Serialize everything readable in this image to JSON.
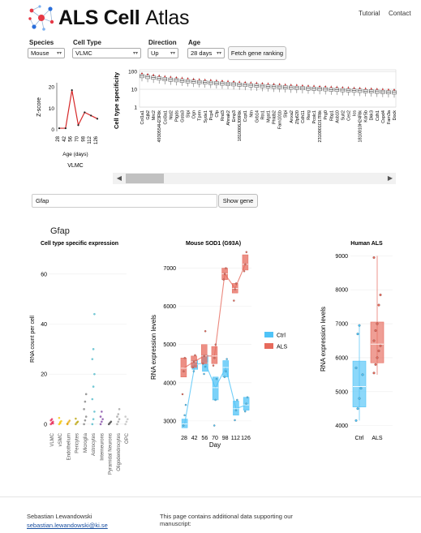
{
  "header": {
    "logo_text_bold": "ALS Cell",
    "logo_text_light": "Atlas",
    "nav": [
      "Tutorial",
      "Contact"
    ]
  },
  "controls": {
    "species": {
      "label": "Species",
      "value": "Mouse"
    },
    "cell_type": {
      "label": "Cell Type",
      "value": "VLMC"
    },
    "direction": {
      "label": "Direction",
      "value": "Up"
    },
    "age": {
      "label": "Age",
      "value": "28 days"
    },
    "fetch_button": "Fetch gene ranking"
  },
  "zscore_chart": {
    "ylabel": "Z-score",
    "xlabel": "Age (days)",
    "caption": "VLMC",
    "yticks": [
      "20",
      "10",
      "0"
    ],
    "xticks": [
      "28",
      "42",
      "56",
      "70",
      "98",
      "112",
      "126"
    ],
    "values": [
      0.5,
      0.5,
      18.5,
      2.0,
      8.0,
      6.5,
      5.0
    ],
    "ylim": [
      -1,
      22
    ]
  },
  "ranking_chart": {
    "ylabel": "Cell type specificity",
    "yticks": [
      "100",
      "10",
      "1"
    ],
    "genes": [
      "Col1a1",
      "Gjb2",
      "Mrc2",
      "4930554H23Rik",
      "Col3a1",
      "Ntd2",
      "Ptgds",
      "Gsta3",
      "Slpi",
      "Ogn",
      "Tprm",
      "Syde1",
      "Pcp4",
      "Cfp",
      "Rnd3",
      "Ahnak2",
      "Emp3",
      "1810006J09Rik",
      "Ccpt1",
      "Ntn",
      "Grb14",
      "Rtn1",
      "Mgst1",
      "Phldb2",
      "Fam101b",
      "Slpi",
      "Anxa2",
      "Zfp620",
      "Cdh11",
      "Rerg",
      "Pcolc1",
      "2310001D17Rik",
      "Prg0",
      "Rbp1",
      "Asb10",
      "Sult2",
      "Ces2",
      "Ics",
      "1810010H24Rik",
      "Kdr5b",
      "Dkk3",
      "Cdh1",
      "Cspd4",
      "Fam3a",
      "Dock"
    ],
    "medians_log10": [
      1.75,
      1.7,
      1.66,
      1.62,
      1.58,
      1.55,
      1.52,
      1.49,
      1.46,
      1.43,
      1.41,
      1.39,
      1.37,
      1.35,
      1.33,
      1.31,
      1.29,
      1.27,
      1.25,
      1.23,
      1.21,
      1.19,
      1.17,
      1.15,
      1.14,
      1.12,
      1.1,
      1.09,
      1.07,
      1.05,
      1.04,
      1.02,
      1.01,
      0.99,
      0.98,
      0.96,
      0.95,
      0.93,
      0.92,
      0.9,
      0.89,
      0.87,
      0.86,
      0.84,
      0.83
    ]
  },
  "gene_search": {
    "value": "Gfap",
    "button": "Show gene"
  },
  "gene_title": "Gfap",
  "chart_data": [
    {
      "type": "scatter",
      "title": "Cell type specific expression",
      "ylabel": "RNA count per cell",
      "categories": [
        "VLMC",
        "vSMC",
        "Endothelium",
        "Pericytes",
        "Microglia",
        "Astrocytes",
        "Interneurons",
        "Pyramidal Neurons",
        "Oligodendrocytes",
        "OPC"
      ],
      "yticks": [
        0,
        20,
        40,
        60
      ],
      "ylim": [
        -2,
        70
      ],
      "colors": [
        "#e6194b",
        "#f3c300",
        "#e4a300",
        "#b8a000",
        "#7a7a7a",
        "#46b5c7",
        "#7b3fa0",
        "#333333",
        "#9e9e9e",
        "#bbbbbb"
      ],
      "values": [
        [
          0,
          0.5,
          1,
          1.5,
          2,
          0.3
        ],
        [
          0,
          0.4,
          1.2,
          2.5,
          0.8
        ],
        [
          0,
          0.8,
          1.4,
          0.2
        ],
        [
          0,
          0.6,
          1,
          2.2
        ],
        [
          0,
          1.5,
          3,
          6,
          9,
          12
        ],
        [
          0,
          2,
          5,
          10,
          15,
          20,
          26,
          30,
          44
        ],
        [
          0,
          1,
          2,
          3,
          5
        ],
        [
          0,
          0.5,
          1
        ],
        [
          0,
          1,
          2,
          3,
          4,
          6
        ],
        [
          0,
          1,
          2,
          3
        ]
      ]
    },
    {
      "type": "box",
      "title": "Mouse SOD1 (G93A)",
      "xlabel": "Day",
      "ylabel": "RNA expression levels",
      "categories": [
        "28",
        "42",
        "56",
        "70",
        "98",
        "112",
        "126"
      ],
      "yticks": [
        3000,
        4000,
        5000,
        6000,
        7000
      ],
      "ylim": [
        2700,
        7500
      ],
      "series": [
        {
          "name": "Ctrl",
          "color": "#4fc3f7",
          "medians": [
            2920,
            4480,
            4520,
            3870,
            4400,
            3320,
            3420
          ],
          "q1": [
            2820,
            4350,
            4300,
            3550,
            4150,
            3150,
            3280
          ],
          "q3": [
            3050,
            4580,
            4720,
            4150,
            4580,
            3520,
            3620
          ],
          "points": [
            [
              2880,
              3150,
              3420
            ],
            [
              4300,
              4450,
              4580
            ],
            [
              4230,
              4420,
              4700
            ],
            [
              2880,
              3550,
              4100
            ],
            [
              4150,
              4300,
              4620
            ],
            [
              3020,
              3280,
              3550
            ],
            [
              3250,
              3450,
              3620
            ]
          ]
        },
        {
          "name": "ALS",
          "color": "#e66a5c",
          "medians": [
            4380,
            4550,
            4700,
            4700,
            6850,
            6470,
            7100
          ],
          "q1": [
            4150,
            4400,
            4500,
            4500,
            6700,
            6350,
            6950
          ],
          "q3": [
            4650,
            4700,
            5000,
            4950,
            7000,
            6600,
            7350
          ],
          "points": [
            [
              3700,
              4300,
              4650
            ],
            [
              4400,
              4550,
              4720
            ],
            [
              4500,
              4700,
              5350
            ],
            [
              4450,
              4650,
              5000
            ],
            [
              6700,
              6850,
              7000
            ],
            [
              6150,
              6450,
              6600
            ],
            [
              6920,
              7100,
              7420
            ]
          ]
        }
      ],
      "legend": [
        {
          "label": "Ctrl",
          "color": "#4fc3f7"
        },
        {
          "label": "ALS",
          "color": "#e66a5c"
        }
      ]
    },
    {
      "type": "box",
      "title": "Human ALS",
      "ylabel": "RNA expression levels",
      "categories": [
        "Ctrl",
        "ALS"
      ],
      "yticks": [
        4000,
        5000,
        6000,
        7000,
        8000,
        9000
      ],
      "ylim": [
        3800,
        9200
      ],
      "series": [
        {
          "name": "Ctrl",
          "color": "#4fc3f7",
          "median": 5150,
          "q1": 4550,
          "q3": 5900,
          "whisker": [
            4150,
            6950
          ],
          "points": [
            4150,
            4500,
            4800,
            5100,
            5500,
            5700,
            6700,
            6950
          ]
        },
        {
          "name": "ALS",
          "color": "#e66a5c",
          "median": 6400,
          "q1": 5850,
          "q3": 7050,
          "whisker": [
            5500,
            9000
          ],
          "points": [
            5550,
            5800,
            6000,
            6200,
            6350,
            6500,
            6800,
            7000,
            7550,
            7850,
            8950
          ]
        }
      ]
    }
  ],
  "footer": {
    "author": "Sebastian Lewandowski",
    "email": "sebastian.lewandowski@ki.se",
    "note": "This page contains additional data supporting our manuscript:"
  }
}
